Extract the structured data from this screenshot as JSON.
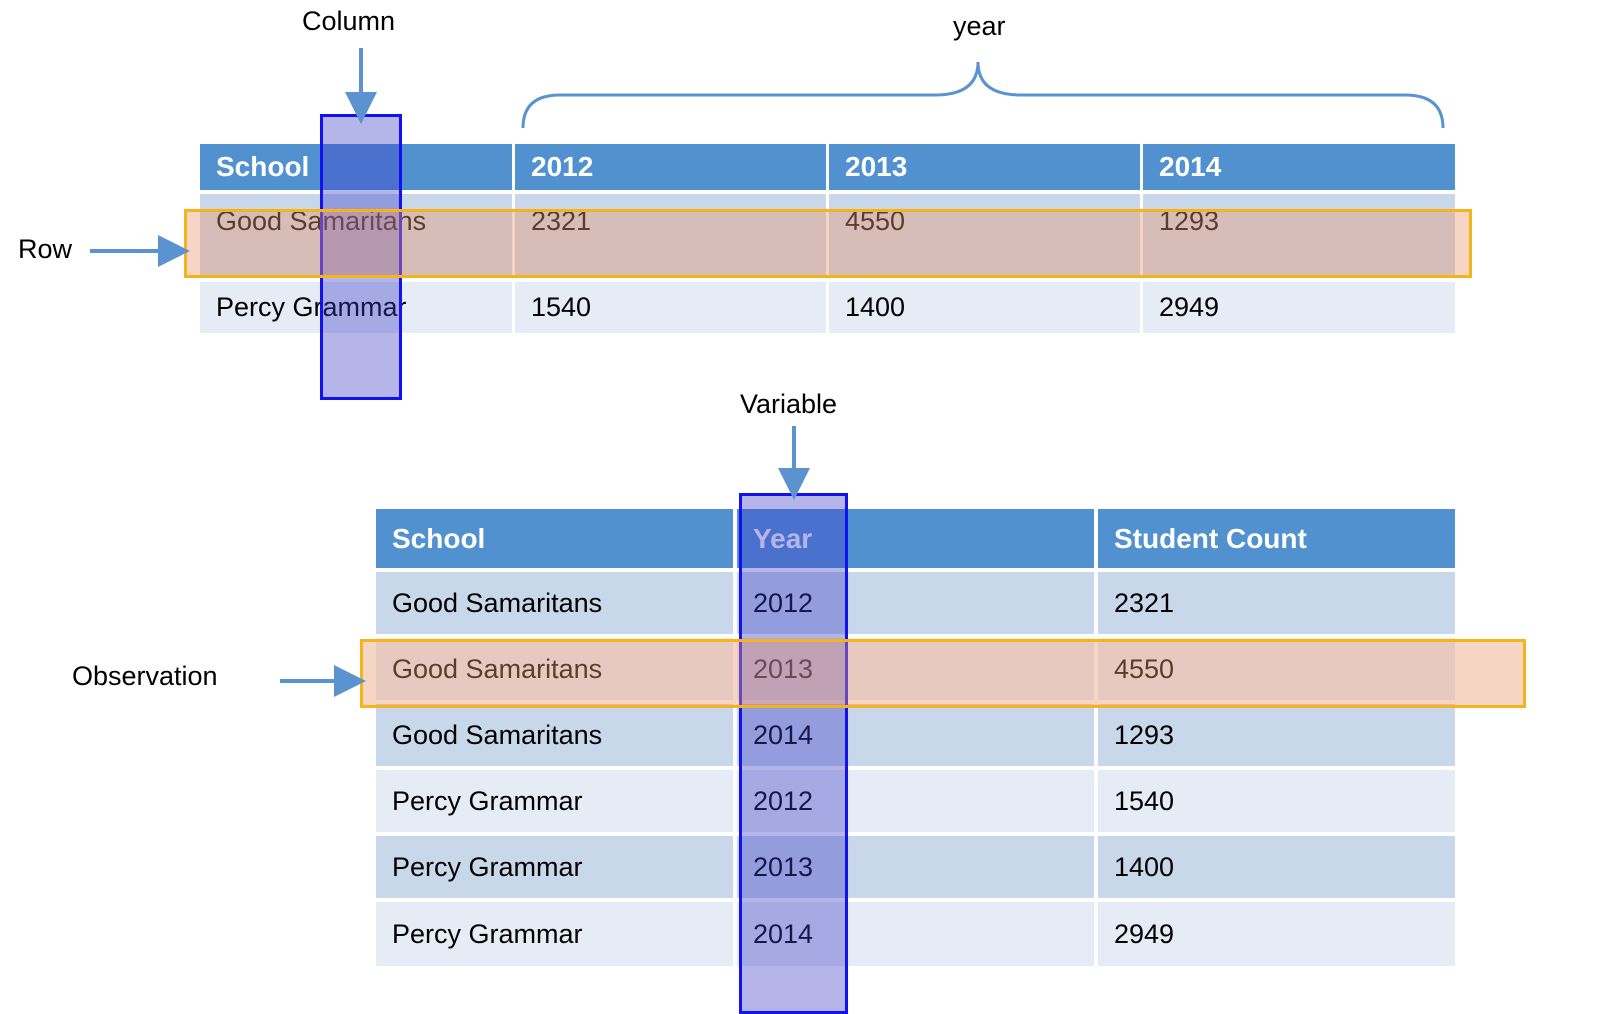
{
  "annotations": {
    "column": "Column",
    "year": "year",
    "row": "Row",
    "variable": "Variable",
    "observation": "Observation"
  },
  "wide_table": {
    "headers": [
      "School",
      "2012",
      "2013",
      "2014"
    ],
    "rows": [
      [
        "Good Samaritans",
        "2321",
        "4550",
        "1293"
      ],
      [
        "Percy Grammar",
        "1540",
        "1400",
        "2949"
      ]
    ]
  },
  "long_table": {
    "headers": [
      "School",
      "Year",
      "Student Count"
    ],
    "rows": [
      [
        "Good Samaritans",
        "2012",
        "2321"
      ],
      [
        "Good Samaritans",
        "2013",
        "4550"
      ],
      [
        "Good Samaritans",
        "2014",
        "1293"
      ],
      [
        "Percy Grammar",
        "2012",
        "1540"
      ],
      [
        "Percy Grammar",
        "2013",
        "1400"
      ],
      [
        "Percy Grammar",
        "2014",
        "2949"
      ]
    ]
  },
  "colors": {
    "header": "#5191d0",
    "row_dark": "#c8d7ea",
    "row_light": "#e5ecf6",
    "highlight_column": "#1212f0",
    "highlight_row": "#f4b41a",
    "arrow": "#5b93d1"
  }
}
